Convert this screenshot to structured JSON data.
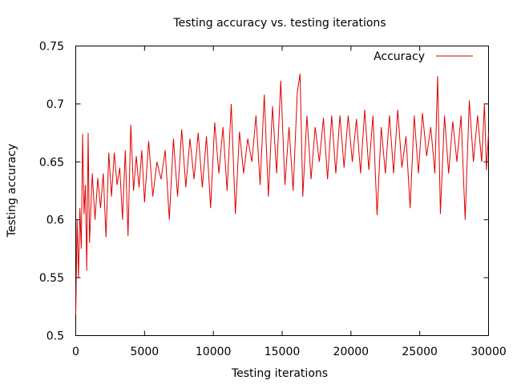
{
  "chart_data": {
    "type": "line",
    "title": "Testing accuracy vs. testing iterations",
    "xlabel": "Testing iterations",
    "ylabel": "Testing accuracy",
    "xlim": [
      0,
      30000
    ],
    "ylim": [
      0.5,
      0.75
    ],
    "x_ticks": [
      0,
      5000,
      10000,
      15000,
      20000,
      25000,
      30000
    ],
    "x_tick_labels": [
      "0",
      "5000",
      "10000",
      "15000",
      "20000",
      "25000",
      "30000"
    ],
    "y_ticks": [
      0.5,
      0.55,
      0.6,
      0.65,
      0.7,
      0.75
    ],
    "y_tick_labels": [
      "0.5",
      "0.55",
      "0.6",
      "0.65",
      "0.7",
      "0.75"
    ],
    "grid": false,
    "legend": {
      "position": "top-right"
    },
    "series": [
      {
        "name": "Accuracy",
        "color": "#e00000",
        "x": [
          0,
          100,
          200,
          300,
          400,
          500,
          600,
          700,
          800,
          900,
          1000,
          1200,
          1400,
          1600,
          1800,
          2000,
          2200,
          2400,
          2600,
          2800,
          3000,
          3200,
          3400,
          3600,
          3800,
          4000,
          4200,
          4400,
          4600,
          4800,
          5000,
          5300,
          5600,
          5900,
          6200,
          6500,
          6800,
          7100,
          7400,
          7700,
          8000,
          8300,
          8600,
          8900,
          9200,
          9500,
          9800,
          10100,
          10400,
          10700,
          11000,
          11300,
          11600,
          11900,
          12200,
          12500,
          12800,
          13100,
          13400,
          13700,
          14000,
          14300,
          14600,
          14900,
          15200,
          15500,
          15800,
          16100,
          16300,
          16500,
          16800,
          17100,
          17400,
          17700,
          18000,
          18300,
          18600,
          18900,
          19200,
          19500,
          19800,
          20100,
          20400,
          20700,
          21000,
          21300,
          21600,
          21900,
          22200,
          22500,
          22800,
          23100,
          23400,
          23700,
          24000,
          24300,
          24600,
          24900,
          25200,
          25500,
          25800,
          26100,
          26300,
          26500,
          26800,
          27100,
          27400,
          27700,
          28000,
          28300,
          28600,
          28900,
          29200,
          29500,
          29700,
          29850,
          30000
        ],
        "y": [
          0.518,
          0.6,
          0.55,
          0.61,
          0.575,
          0.674,
          0.605,
          0.63,
          0.556,
          0.675,
          0.58,
          0.64,
          0.6,
          0.636,
          0.61,
          0.64,
          0.585,
          0.658,
          0.62,
          0.658,
          0.63,
          0.645,
          0.6,
          0.66,
          0.586,
          0.682,
          0.625,
          0.655,
          0.628,
          0.66,
          0.615,
          0.668,
          0.62,
          0.65,
          0.635,
          0.66,
          0.6,
          0.67,
          0.62,
          0.678,
          0.628,
          0.67,
          0.635,
          0.675,
          0.628,
          0.672,
          0.61,
          0.684,
          0.64,
          0.68,
          0.625,
          0.7,
          0.605,
          0.676,
          0.64,
          0.67,
          0.65,
          0.69,
          0.63,
          0.708,
          0.62,
          0.698,
          0.64,
          0.72,
          0.63,
          0.68,
          0.625,
          0.71,
          0.726,
          0.62,
          0.69,
          0.635,
          0.68,
          0.65,
          0.688,
          0.635,
          0.69,
          0.64,
          0.69,
          0.645,
          0.69,
          0.65,
          0.687,
          0.64,
          0.695,
          0.643,
          0.69,
          0.604,
          0.68,
          0.64,
          0.69,
          0.64,
          0.695,
          0.645,
          0.672,
          0.61,
          0.69,
          0.64,
          0.692,
          0.655,
          0.68,
          0.64,
          0.724,
          0.605,
          0.69,
          0.64,
          0.685,
          0.65,
          0.69,
          0.6,
          0.703,
          0.65,
          0.69,
          0.65,
          0.7,
          0.643,
          0.675
        ]
      }
    ]
  }
}
